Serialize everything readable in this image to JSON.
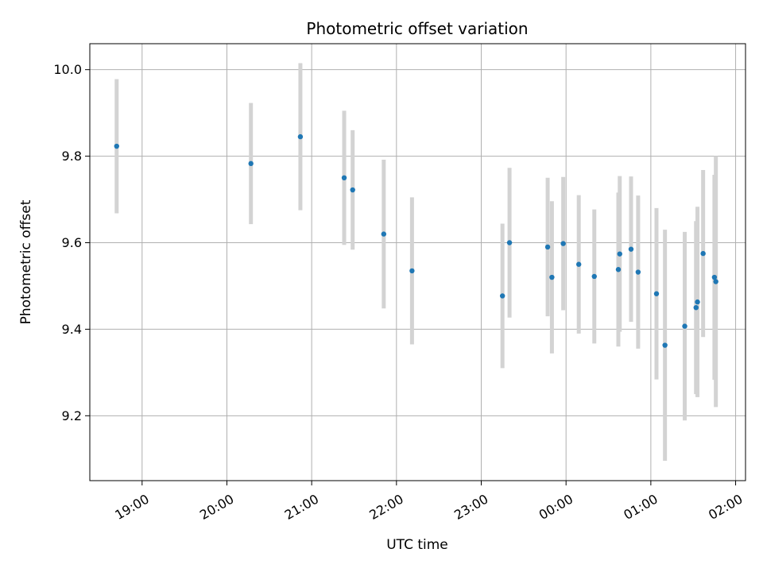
{
  "chart_data": {
    "type": "scatter",
    "title": "Photometric offset variation",
    "xlabel": "UTC time",
    "ylabel": "Photometric offset",
    "x_axis_type": "time",
    "xlim": [
      "18:23",
      "02:07"
    ],
    "ylim": [
      9.05,
      10.06
    ],
    "x_ticks": [
      "19:00",
      "20:00",
      "21:00",
      "22:00",
      "23:00",
      "00:00",
      "01:00",
      "02:00"
    ],
    "y_ticks": [
      9.2,
      9.4,
      9.6,
      9.8,
      10.0
    ],
    "grid": true,
    "point_color": "#1f77b4",
    "errorbar_color": "#d3d3d3",
    "points": [
      {
        "x": "18:42",
        "y": 9.823,
        "err": 0.155
      },
      {
        "x": "20:17",
        "y": 9.783,
        "err": 0.14
      },
      {
        "x": "20:52",
        "y": 9.845,
        "err": 0.17
      },
      {
        "x": "21:23",
        "y": 9.75,
        "err": 0.155
      },
      {
        "x": "21:29",
        "y": 9.722,
        "err": 0.138
      },
      {
        "x": "21:51",
        "y": 9.62,
        "err": 0.172
      },
      {
        "x": "22:11",
        "y": 9.535,
        "err": 0.17
      },
      {
        "x": "23:15",
        "y": 9.477,
        "err": 0.167
      },
      {
        "x": "23:20",
        "y": 9.6,
        "err": 0.173
      },
      {
        "x": "23:47",
        "y": 9.59,
        "err": 0.16
      },
      {
        "x": "23:50",
        "y": 9.52,
        "err": 0.176
      },
      {
        "x": "23:58",
        "y": 9.598,
        "err": 0.154
      },
      {
        "x": "00:09",
        "y": 9.55,
        "err": 0.16
      },
      {
        "x": "00:20",
        "y": 9.522,
        "err": 0.155
      },
      {
        "x": "00:37",
        "y": 9.538,
        "err": 0.178
      },
      {
        "x": "00:38",
        "y": 9.574,
        "err": 0.18
      },
      {
        "x": "00:46",
        "y": 9.585,
        "err": 0.168
      },
      {
        "x": "00:51",
        "y": 9.532,
        "err": 0.177
      },
      {
        "x": "01:04",
        "y": 9.482,
        "err": 0.198
      },
      {
        "x": "01:10",
        "y": 9.363,
        "err": 0.267
      },
      {
        "x": "01:24",
        "y": 9.407,
        "err": 0.218
      },
      {
        "x": "01:32",
        "y": 9.45,
        "err": 0.2
      },
      {
        "x": "01:33",
        "y": 9.463,
        "err": 0.22
      },
      {
        "x": "01:37",
        "y": 9.575,
        "err": 0.193
      },
      {
        "x": "01:45",
        "y": 9.52,
        "err": 0.237
      },
      {
        "x": "01:46",
        "y": 9.51,
        "err": 0.29
      }
    ]
  }
}
